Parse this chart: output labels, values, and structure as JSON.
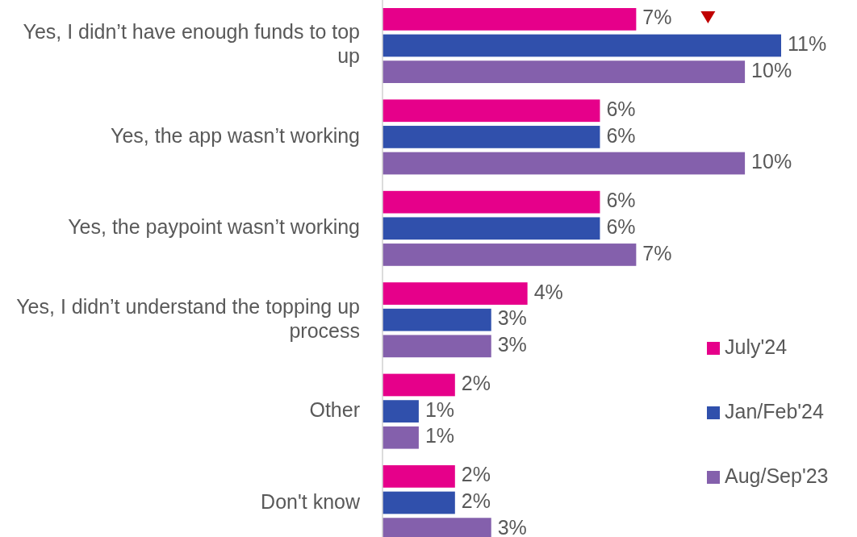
{
  "chart_data": {
    "type": "bar",
    "orientation": "horizontal",
    "categories": [
      "Yes, I didn’t have enough funds to top up",
      "Yes, the app wasn’t working",
      "Yes, the paypoint wasn’t working",
      "Yes, I didn’t understand the topping up process",
      "Other",
      "Don't know"
    ],
    "series": [
      {
        "name": "July'24",
        "color": "#e6008a",
        "values": [
          7,
          6,
          6,
          4,
          2,
          2
        ],
        "value_labels": [
          "7%",
          "6%",
          "6%",
          "4%",
          "2%",
          "2%"
        ]
      },
      {
        "name": "Jan/Feb'24",
        "color": "#3050ac",
        "values": [
          11,
          6,
          6,
          3,
          1,
          2
        ],
        "value_labels": [
          "11%",
          "6%",
          "6%",
          "3%",
          "1%",
          "2%"
        ]
      },
      {
        "name": "Aug/Sep'23",
        "color": "#8460ac",
        "values": [
          10,
          10,
          7,
          3,
          1,
          3
        ],
        "value_labels": [
          "10%",
          "10%",
          "7%",
          "3%",
          "1%",
          "3%"
        ]
      }
    ],
    "legend": "bottom right"
  }
}
